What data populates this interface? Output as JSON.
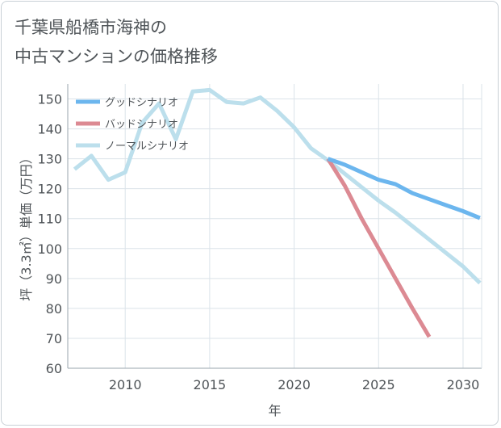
{
  "title": {
    "line1": "千葉県船橋市海神の",
    "line2": "中古マンションの価格推移"
  },
  "chart_data": {
    "type": "line",
    "xlabel": "年",
    "ylabel": "坪（3.3㎡）単価（万円）",
    "xlim": [
      2006.6,
      2031.1
    ],
    "ylim": [
      60,
      155
    ],
    "x_ticks": [
      "2010",
      "2015",
      "2020",
      "2025",
      "2030"
    ],
    "y_ticks": [
      "60",
      "70",
      "80",
      "90",
      "100",
      "110",
      "120",
      "130",
      "140",
      "150"
    ],
    "grid": true,
    "legend_position": "top-left",
    "series": [
      {
        "name": "グッドシナリオ",
        "color": "#6cb6ee",
        "points": [
          [
            2022,
            130
          ],
          [
            2023,
            128
          ],
          [
            2024,
            125.5
          ],
          [
            2025,
            123
          ],
          [
            2026,
            121.5
          ],
          [
            2027,
            118.5
          ],
          [
            2028,
            116.5
          ],
          [
            2029,
            114.5
          ],
          [
            2030,
            112.5
          ],
          [
            2031,
            110.2
          ]
        ]
      },
      {
        "name": "バッドシナリオ",
        "color": "#dc8a93",
        "points": [
          [
            2022,
            130
          ],
          [
            2023,
            121
          ],
          [
            2024,
            110
          ],
          [
            2025,
            100
          ],
          [
            2026,
            90
          ],
          [
            2027,
            80
          ],
          [
            2028,
            70.5
          ]
        ]
      },
      {
        "name": "ノーマルシナリオ",
        "color": "#bcdfec",
        "points": [
          [
            2007,
            126.5
          ],
          [
            2008,
            131
          ],
          [
            2009,
            123
          ],
          [
            2010,
            125.5
          ],
          [
            2011,
            142
          ],
          [
            2012,
            148.5
          ],
          [
            2013,
            136.5
          ],
          [
            2014,
            152.5
          ],
          [
            2015,
            153
          ],
          [
            2016,
            149
          ],
          [
            2017,
            148.5
          ],
          [
            2018,
            150.5
          ],
          [
            2019,
            146
          ],
          [
            2020,
            140.5
          ],
          [
            2021,
            133.5
          ],
          [
            2022,
            129.5
          ],
          [
            2023,
            125
          ],
          [
            2024,
            120.5
          ],
          [
            2025,
            116
          ],
          [
            2026,
            112
          ],
          [
            2027,
            107.5
          ],
          [
            2028,
            103
          ],
          [
            2029,
            98.5
          ],
          [
            2030,
            94
          ],
          [
            2031,
            88.5
          ]
        ]
      }
    ]
  }
}
